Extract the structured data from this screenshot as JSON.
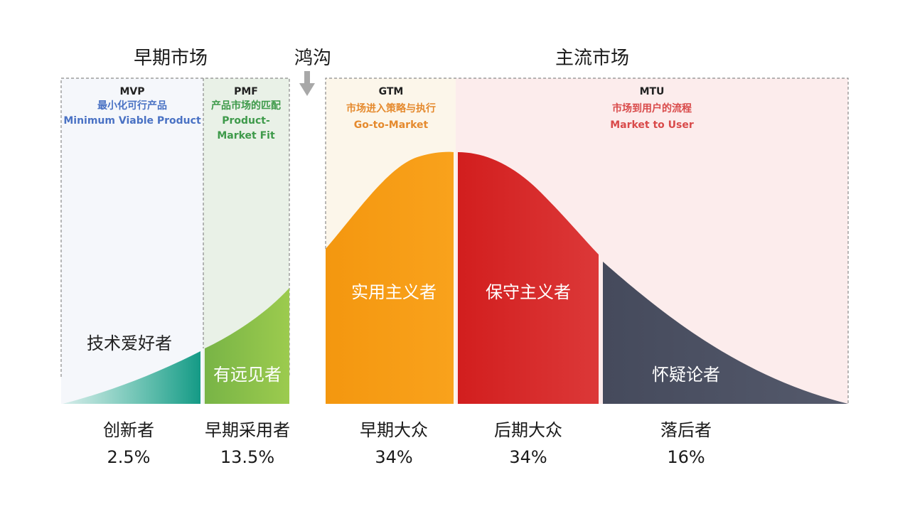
{
  "headers": {
    "early_market": "早期市场",
    "chasm": "鸿沟",
    "mainstream_market": "主流市场"
  },
  "phases": [
    {
      "code": "MVP",
      "line1": "最小化可行产品",
      "line2": "Minimum Viable Product",
      "color": "#4a72c4"
    },
    {
      "code": "PMF",
      "line1": "产品市场的匹配",
      "line2": "Product-",
      "line3": "Market Fit",
      "color": "#3e9a4a"
    },
    {
      "code": "GTM",
      "line1": "市场进入策略与执行",
      "line2": "Go-to-Market",
      "color": "#e58a2e"
    },
    {
      "code": "MTU",
      "line1": "市场到用户的流程",
      "line2": "Market to User",
      "color": "#d94a4a"
    }
  ],
  "segments": [
    {
      "label": "技术爱好者",
      "category": "创新者",
      "percent": "2.5%",
      "color": "#1fa68a"
    },
    {
      "label": "有远见者",
      "category": "早期采用者",
      "percent": "13.5%",
      "color": "#8cc04b"
    },
    {
      "label": "实用主义者",
      "category": "早期大众",
      "percent": "34%",
      "color": "#f79a14"
    },
    {
      "label": "保守主义者",
      "category": "后期大众",
      "percent": "34%",
      "color": "#d42a2a"
    },
    {
      "label": "怀疑论者",
      "category": "落后者",
      "percent": "16%",
      "color": "#4a4f60"
    }
  ],
  "colors": {
    "mvp_bg": "#f5f7fb",
    "pmf_bg": "#e9f1e7",
    "gtm_bg": "#fcf6ea",
    "mtu_bg": "#fcecec",
    "chasm_arrow": "#a8a8a8",
    "dashed_border": "#8a8a8a"
  }
}
